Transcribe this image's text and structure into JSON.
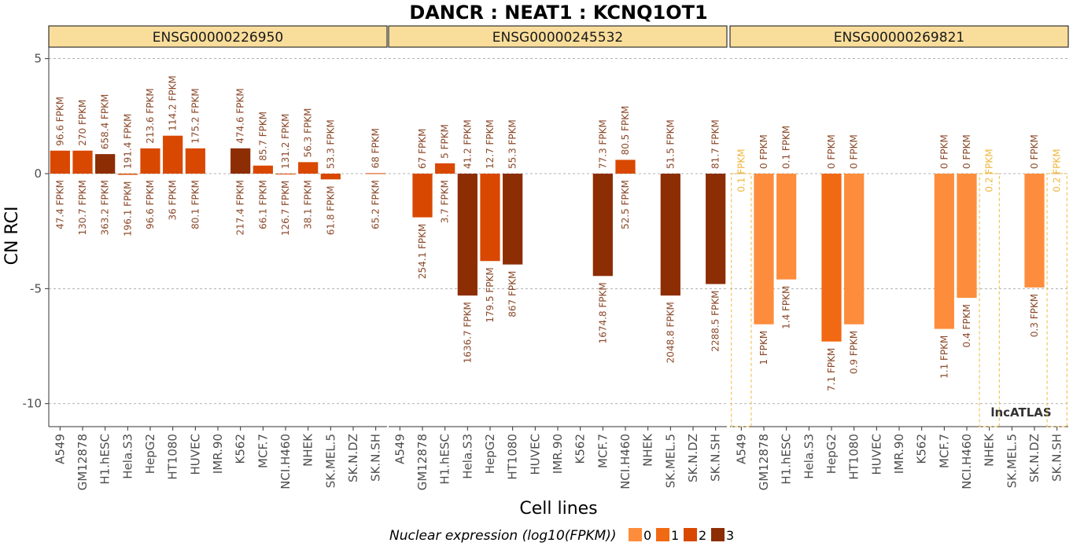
{
  "chart_data": {
    "type": "bar",
    "title": "DANCR : NEAT1 : KCNQ1OT1",
    "xlabel": "Cell lines",
    "ylabel": "CN RCI",
    "ylim": [
      -11,
      5.5
    ],
    "y_ticks": [
      5,
      0,
      -5,
      -10
    ],
    "grid": true,
    "legend_position": "bottom",
    "watermark": "lncATLAS",
    "categories": [
      "A549",
      "GM12878",
      "H1.hESC",
      "Hela.S3",
      "HepG2",
      "HT1080",
      "HUVEC",
      "IMR.90",
      "K562",
      "MCF.7",
      "NCI.H460",
      "NHEK",
      "SK.MEL.5",
      "SK.N.DZ",
      "SK.N.SH"
    ],
    "legend": {
      "title": "Nuclear expression (log10(FPKM))",
      "items": [
        {
          "label": "0",
          "color": "#fd8d3c"
        },
        {
          "label": "1",
          "color": "#f16913"
        },
        {
          "label": "2",
          "color": "#d94801"
        },
        {
          "label": "3",
          "color": "#8c2d04"
        }
      ]
    },
    "panels": [
      {
        "gene_id": "ENSG00000226950",
        "values": [
          1.0,
          1.0,
          0.85,
          -0.05,
          1.1,
          1.65,
          1.1,
          null,
          1.1,
          0.35,
          -0.02,
          0.5,
          -0.25,
          null,
          0.02
        ],
        "levels": [
          2,
          2,
          3,
          2,
          2,
          2,
          2,
          null,
          3,
          2,
          2,
          2,
          2,
          null,
          2
        ],
        "cyto_labels": [
          "96.6 FPKM",
          "270 FPKM",
          "658.4 FPKM",
          "191.4 FPKM",
          "213.6 FPKM",
          "114.2 FPKM",
          "175.2 FPKM",
          "",
          "474.6 FPKM",
          "85.7 FPKM",
          "131.2 FPKM",
          "56.3 FPKM",
          "53.3 FPKM",
          "",
          "68 FPKM"
        ],
        "nuc_labels": [
          "47.4 FPKM",
          "130.7 FPKM",
          "363.2 FPKM",
          "196.1 FPKM",
          "96.6 FPKM",
          "36 FPKM",
          "80.1 FPKM",
          "",
          "217.4 FPKM",
          "66.1 FPKM",
          "126.7 FPKM",
          "38.1 FPKM",
          "61.8 FPKM",
          "",
          "65.2 FPKM"
        ],
        "missing": []
      },
      {
        "gene_id": "ENSG00000245532",
        "values": [
          null,
          -1.9,
          0.45,
          -5.3,
          -3.8,
          -3.95,
          null,
          null,
          null,
          -4.45,
          0.6,
          null,
          -5.3,
          null,
          -4.8
        ],
        "levels": [
          null,
          2,
          2,
          3,
          2,
          3,
          null,
          null,
          null,
          3,
          2,
          null,
          3,
          null,
          3
        ],
        "cyto_labels": [
          "",
          "67 FPKM",
          "5 FPKM",
          "41.2 FPKM",
          "12.7 FPKM",
          "55.3 FPKM",
          "",
          "",
          "",
          "77.3 FPKM",
          "80.5 FPKM",
          "",
          "51.5 FPKM",
          "",
          "81.7 FPKM"
        ],
        "nuc_labels": [
          "",
          "254.1 FPKM",
          "3.7 FPKM",
          "1636.7 FPKM",
          "179.5 FPKM",
          "867 FPKM",
          "",
          "",
          "",
          "1674.8 FPKM",
          "52.5 FPKM",
          "",
          "2048.8 FPKM",
          "",
          "2288.5 FPKM"
        ],
        "missing": []
      },
      {
        "gene_id": "ENSG00000269821",
        "values": [
          null,
          -6.55,
          -4.6,
          null,
          -7.3,
          -6.55,
          null,
          null,
          null,
          -6.75,
          -5.4,
          null,
          null,
          -4.95,
          null
        ],
        "levels": [
          null,
          0,
          0,
          null,
          1,
          0,
          null,
          null,
          null,
          0,
          0,
          null,
          null,
          0,
          null
        ],
        "cyto_labels": [
          "",
          "0 FPKM",
          "0.1 FPKM",
          "",
          "0 FPKM",
          "0 FPKM",
          "",
          "",
          "",
          "0 FPKM",
          "0 FPKM",
          "",
          "",
          "0 FPKM",
          ""
        ],
        "nuc_labels": [
          "",
          "1 FPKM",
          "1.4 FPKM",
          "",
          "7.1 FPKM",
          "0.9 FPKM",
          "",
          "",
          "",
          "1.1 FPKM",
          "0.4 FPKM",
          "",
          "",
          "0.3 FPKM",
          ""
        ],
        "missing": [
          {
            "index": 0,
            "label": "0.1 FPKM"
          },
          {
            "index": 11,
            "label": "0.2 FPKM"
          },
          {
            "index": 14,
            "label": "0.2 FPKM"
          }
        ]
      }
    ]
  },
  "colors": {
    "strip_fill": "#f9dd9a",
    "label_text": "#8b4a2b",
    "missing_outline": "#f0b840",
    "grid": "#999999"
  }
}
